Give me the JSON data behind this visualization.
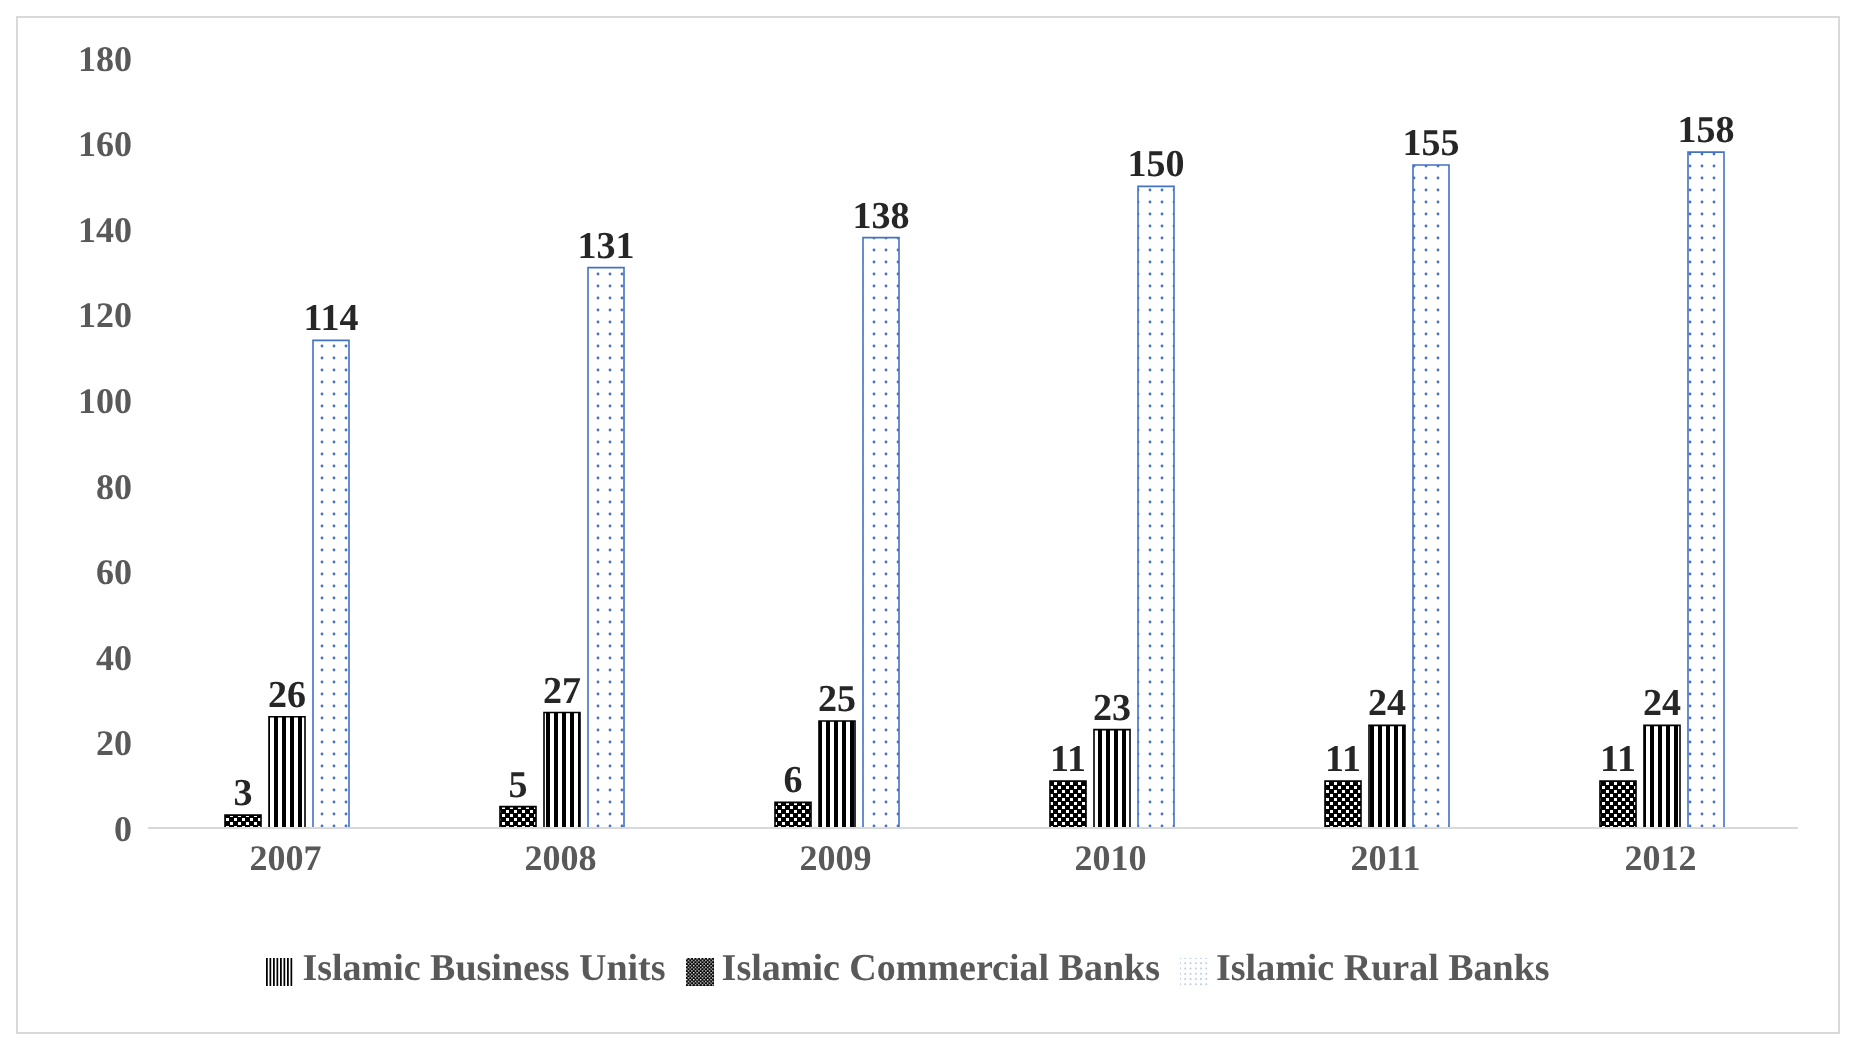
{
  "chart_data": {
    "type": "bar",
    "categories": [
      "2007",
      "2008",
      "2009",
      "2010",
      "2011",
      "2012"
    ],
    "series": [
      {
        "name": "Islamic Commercial Banks",
        "color": "#000000",
        "values": [
          3,
          5,
          6,
          11,
          11,
          11
        ]
      },
      {
        "name": "Islamic Business Units",
        "color": "#000000",
        "values": [
          26,
          27,
          25,
          23,
          24,
          24
        ]
      },
      {
        "name": "Islamic Rural Banks",
        "color": "#4472c4",
        "values": [
          114,
          131,
          138,
          150,
          155,
          158
        ]
      }
    ],
    "ylim": [
      0,
      180
    ],
    "yticks": [
      0,
      20,
      40,
      60,
      80,
      100,
      120,
      140,
      160,
      180
    ],
    "grid": false,
    "legend": "bottom",
    "data_labels": true
  }
}
